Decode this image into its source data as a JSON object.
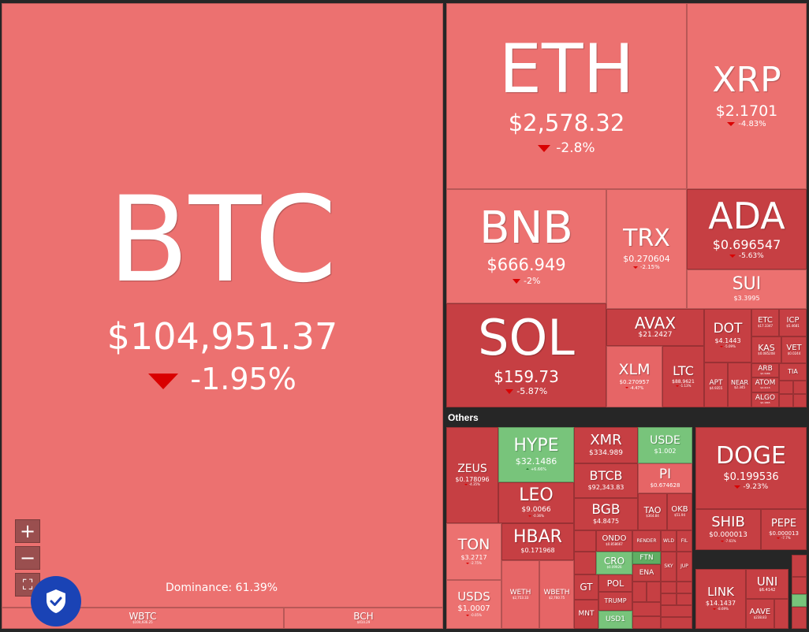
{
  "dominance_text": "Dominance: 61.39%",
  "others_label": "Others",
  "zoom": {
    "in_label": "+",
    "out_label": "−",
    "fullscreen_label": "⛶"
  },
  "tiles": {
    "btc": {
      "sym": "BTC",
      "price": "$104,951.37",
      "change": "-1.95%"
    },
    "wbtc": {
      "sym": "WBTC",
      "price": "$104,936.25"
    },
    "bch": {
      "sym": "BCH",
      "price": "$410.29"
    },
    "eth": {
      "sym": "ETH",
      "price": "$2,578.32",
      "change": "-2.8%"
    },
    "xrp": {
      "sym": "XRP",
      "price": "$2.1701",
      "change": "-4.83%"
    },
    "bnb": {
      "sym": "BNB",
      "price": "$666.949",
      "change": "-2%"
    },
    "trx": {
      "sym": "TRX",
      "price": "$0.270604",
      "change": "-2.15%"
    },
    "ada": {
      "sym": "ADA",
      "price": "$0.696547",
      "change": "-5.63%"
    },
    "sui": {
      "sym": "SUI",
      "price": "$3.3995"
    },
    "sol": {
      "sym": "SOL",
      "price": "$159.73",
      "change": "-5.87%"
    },
    "avax": {
      "sym": "AVAX",
      "price": "$21.2427"
    },
    "xlm": {
      "sym": "XLM",
      "price": "$0.270957",
      "change": "-4.47%"
    },
    "ltc": {
      "sym": "LTC",
      "price": "$88.9621",
      "change": "-1.13%"
    },
    "dot": {
      "sym": "DOT",
      "price": "$4.1443",
      "change": "-5.09%"
    },
    "etc": {
      "sym": "ETC",
      "price": "$17.3347"
    },
    "icp": {
      "sym": "ICP",
      "price": "$5.4681"
    },
    "kas": {
      "sym": "KAS",
      "price": "$0.085208"
    },
    "vet": {
      "sym": "VET",
      "price": "$0.0244"
    },
    "apt": {
      "sym": "APT",
      "price": "$4.9355"
    },
    "near": {
      "sym": "NEAR",
      "price": "$2.345"
    },
    "arb": {
      "sym": "ARB",
      "price": "$0.3486"
    },
    "atom": {
      "sym": "ATOM",
      "price": "$4.4115"
    },
    "algo": {
      "sym": "ALGO",
      "price": "$0.1865"
    },
    "tia": {
      "sym": "TIA"
    },
    "zeus": {
      "sym": "ZEUS",
      "price": "$0.178096",
      "change": "-4.35%"
    },
    "hype": {
      "sym": "HYPE",
      "price": "$32.1486",
      "change": "+6.66%"
    },
    "xmr": {
      "sym": "XMR",
      "price": "$334.989"
    },
    "usde": {
      "sym": "USDE",
      "price": "$1.002"
    },
    "leo": {
      "sym": "LEO",
      "price": "$9.0066",
      "change": "-0.36%"
    },
    "btcb": {
      "sym": "BTCB",
      "price": "$92,343.83"
    },
    "pi": {
      "sym": "PI",
      "price": "$0.674628"
    },
    "bgb": {
      "sym": "BGB",
      "price": "$4.8475"
    },
    "tao": {
      "sym": "TAO",
      "price": "$364.84"
    },
    "okb": {
      "sym": "OKB",
      "price": "$51.94"
    },
    "ton": {
      "sym": "TON",
      "price": "$3.2717",
      "change": "-2.75%"
    },
    "hbar": {
      "sym": "HBAR",
      "price": "$0.171968"
    },
    "ondo": {
      "sym": "ONDO",
      "price": "$0.858667"
    },
    "render": {
      "sym": "RENDER"
    },
    "wld": {
      "sym": "WLD"
    },
    "fil": {
      "sym": "FIL"
    },
    "cro": {
      "sym": "CRO",
      "price": "$0.09926"
    },
    "ftn": {
      "sym": "FTN"
    },
    "ena": {
      "sym": "ENA"
    },
    "sky": {
      "sym": "SKY"
    },
    "jup": {
      "sym": "JUP"
    },
    "usds": {
      "sym": "USDS",
      "price": "$1.0007",
      "change": "-0.05%"
    },
    "weth": {
      "sym": "WETH",
      "price": "$2,753.33"
    },
    "wbeth": {
      "sym": "WBETH",
      "price": "$2,760.75"
    },
    "gt": {
      "sym": "GT"
    },
    "pol": {
      "sym": "POL"
    },
    "trump": {
      "sym": "TRUMP"
    },
    "mnt": {
      "sym": "MNT"
    },
    "usd1": {
      "sym": "USD1"
    },
    "doge": {
      "sym": "DOGE",
      "price": "$0.199536",
      "change": "-9.23%"
    },
    "shib": {
      "sym": "SHIB",
      "price": "$0.000013",
      "change": "-7.61%"
    },
    "pepe": {
      "sym": "PEPE",
      "price": "$0.000013",
      "change": "-7.7%"
    },
    "link": {
      "sym": "LINK",
      "price": "$14.1437",
      "change": "-8.69%"
    },
    "uni": {
      "sym": "UNI",
      "price": "$6.4142"
    },
    "aave": {
      "sym": "AAVE",
      "price": "$238.83"
    }
  }
}
